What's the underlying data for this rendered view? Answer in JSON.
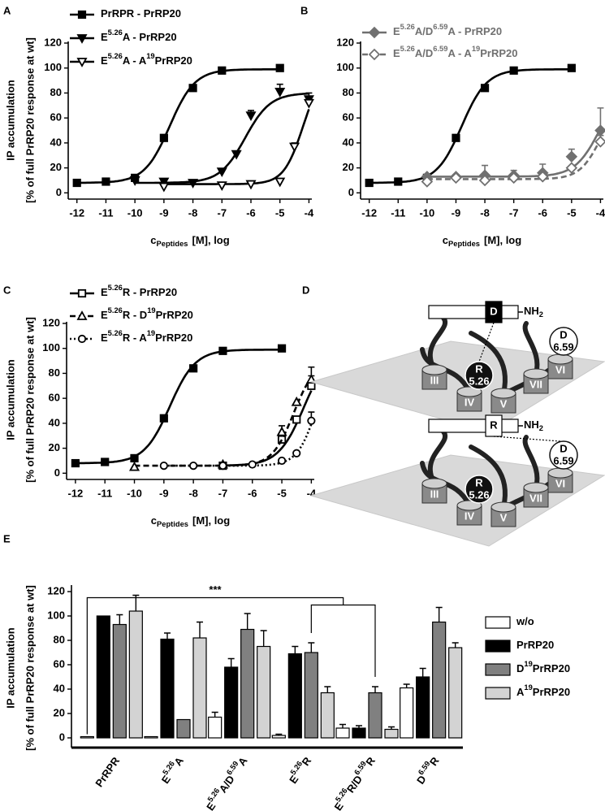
{
  "chart_data": [
    {
      "panel_label": "A",
      "type": "scatter",
      "ylabel": [
        "IP accumulation",
        "[% of full PrRP20 response at wt]"
      ],
      "xlabel": [
        {
          "text": "c"
        },
        {
          "text": "Peptides",
          "sub": true
        },
        {
          "text": "[M], log"
        }
      ],
      "xlim": [
        -12.3,
        -3.9
      ],
      "xticks": [
        -12,
        -11,
        -10,
        -9,
        -8,
        -7,
        -6,
        -5,
        -4
      ],
      "ylim": [
        -5,
        120
      ],
      "yticks": [
        0,
        20,
        40,
        60,
        80,
        100,
        120
      ],
      "series": [
        {
          "name": [
            {
              "text": "PrRPR - PrRP20"
            }
          ],
          "color": "#000000",
          "marker": "square",
          "filled": true,
          "line": "solid",
          "x": [
            -12,
            -11,
            -10,
            -9,
            -8,
            -7,
            -5
          ],
          "values": [
            8,
            9,
            12,
            44,
            84,
            98,
            100
          ],
          "errors": [
            null,
            null,
            null,
            null,
            null,
            null,
            null
          ],
          "fit": {
            "bottom": 8,
            "top": 99,
            "logec50": -8.8,
            "hill": 1
          }
        },
        {
          "name": [
            {
              "text": "E"
            },
            {
              "text": "5.26",
              "sup": true
            },
            {
              "text": "A - PrRP20"
            }
          ],
          "color": "#000000",
          "marker": "triangle-down",
          "filled": true,
          "line": "solid",
          "x": [
            -10,
            -9,
            -8,
            -7,
            -6.5,
            -6,
            -5,
            -4
          ],
          "values": [
            10,
            9,
            8,
            17,
            31,
            62,
            81,
            75
          ],
          "errors": [
            null,
            null,
            null,
            null,
            null,
            4,
            6,
            5
          ],
          "fit": {
            "bottom": 8,
            "top": 80,
            "logec50": -6.2,
            "hill": 1
          }
        },
        {
          "name": [
            {
              "text": "E"
            },
            {
              "text": "5.26",
              "sup": true
            },
            {
              "text": "A - A"
            },
            {
              "text": "19",
              "sup": true
            },
            {
              "text": "PrRP20"
            }
          ],
          "color": "#000000",
          "marker": "triangle-down",
          "filled": false,
          "line": "solid",
          "x": [
            -9,
            -7,
            -6,
            -5,
            -4.5,
            -4
          ],
          "values": [
            5,
            6,
            7,
            9,
            37,
            72
          ],
          "errors": [
            null,
            null,
            null,
            null,
            3,
            5
          ],
          "fit": {
            "bottom": 7,
            "top": 100,
            "logec50": -4.2,
            "hill": 1.3
          }
        }
      ]
    },
    {
      "panel_label": "B",
      "type": "scatter",
      "xlabel": [
        {
          "text": "c"
        },
        {
          "text": "Peptides",
          "sub": true
        },
        {
          "text": "[M], log"
        }
      ],
      "xlim": [
        -12.3,
        -3.9
      ],
      "xticks": [
        -12,
        -11,
        -10,
        -9,
        -8,
        -7,
        -6,
        -5,
        -4
      ],
      "ylim": [
        -5,
        120
      ],
      "yticks": [
        0,
        20,
        40,
        60,
        80,
        100,
        120
      ],
      "series": [
        {
          "color": "#000000",
          "marker": "square",
          "filled": true,
          "line": "solid",
          "x": [
            -12,
            -11,
            -10,
            -9,
            -8,
            -7,
            -5
          ],
          "values": [
            8,
            9,
            12,
            44,
            84,
            98,
            100
          ],
          "errors": [
            null,
            null,
            null,
            null,
            null,
            null,
            null
          ],
          "fit": {
            "bottom": 8,
            "top": 99,
            "logec50": -8.8,
            "hill": 1
          }
        },
        {
          "name": [
            {
              "text": "E"
            },
            {
              "text": "5.26",
              "sup": true
            },
            {
              "text": "A/D"
            },
            {
              "text": "6.59",
              "sup": true
            },
            {
              "text": "A - PrRP20"
            }
          ],
          "color": "#707070",
          "marker": "diamond",
          "filled": true,
          "line": "solid",
          "x": [
            -10,
            -9,
            -8,
            -7,
            -6,
            -5,
            -4
          ],
          "values": [
            13,
            13,
            14,
            14,
            16,
            29,
            50
          ],
          "errors": [
            null,
            null,
            8,
            4,
            7,
            6,
            18
          ],
          "fit": {
            "bottom": 13,
            "top": 90,
            "logec50": -4.0,
            "hill": 1
          }
        },
        {
          "name": [
            {
              "text": "E"
            },
            {
              "text": "5.26",
              "sup": true
            },
            {
              "text": "A/D"
            },
            {
              "text": "6.59",
              "sup": true
            },
            {
              "text": "A - A"
            },
            {
              "text": "19",
              "sup": true
            },
            {
              "text": "PrRP20"
            }
          ],
          "color": "#707070",
          "marker": "diamond",
          "filled": false,
          "line": "dashed",
          "x": [
            -10,
            -9,
            -8,
            -7,
            -6,
            -5,
            -4
          ],
          "values": [
            9,
            12,
            10,
            12,
            13,
            20,
            41
          ],
          "errors": [
            null,
            null,
            null,
            null,
            null,
            null,
            5
          ],
          "fit": {
            "bottom": 11,
            "top": 75,
            "logec50": -4.0,
            "hill": 1.2
          }
        }
      ]
    },
    {
      "panel_label": "C",
      "type": "scatter",
      "ylabel": [
        "IP accumulation",
        "[% of full PrRP20 response at wt]"
      ],
      "xlabel": [
        {
          "text": "c"
        },
        {
          "text": "Peptides",
          "sub": true
        },
        {
          "text": "[M], log"
        }
      ],
      "xlim": [
        -12.3,
        -3.9
      ],
      "xticks": [
        -12,
        -11,
        -10,
        -9,
        -8,
        -7,
        -6,
        -5,
        -4
      ],
      "ylim": [
        -5,
        120
      ],
      "yticks": [
        0,
        20,
        40,
        60,
        80,
        100,
        120
      ],
      "series": [
        {
          "color": "#000000",
          "marker": "square",
          "filled": true,
          "line": "solid",
          "x": [
            -12,
            -11,
            -10,
            -9,
            -8,
            -7,
            -5
          ],
          "values": [
            8,
            9,
            12,
            44,
            84,
            98,
            100
          ],
          "errors": [
            null,
            null,
            null,
            null,
            null,
            null,
            null
          ],
          "fit": {
            "bottom": 8,
            "top": 99,
            "logec50": -8.8,
            "hill": 1
          }
        },
        {
          "name": [
            {
              "text": "E"
            },
            {
              "text": "5.26",
              "sup": true
            },
            {
              "text": "R - PrRP20"
            }
          ],
          "color": "#000000",
          "marker": "square",
          "filled": false,
          "line": "solid",
          "x": [
            -7,
            -5,
            -4.5,
            -4
          ],
          "values": [
            6,
            27,
            43,
            70
          ],
          "errors": [
            null,
            null,
            null,
            8
          ],
          "fit": {
            "bottom": 6,
            "top": 100,
            "logec50": -4.25,
            "hill": 1
          }
        },
        {
          "name": [
            {
              "text": "E"
            },
            {
              "text": "5.26",
              "sup": true
            },
            {
              "text": "R - D"
            },
            {
              "text": "19",
              "sup": true
            },
            {
              "text": "PrRP20"
            }
          ],
          "color": "#000000",
          "marker": "triangle-up",
          "filled": false,
          "line": "dashed",
          "x": [
            -10,
            -7,
            -5,
            -4.5,
            -4
          ],
          "values": [
            5,
            7,
            33,
            57,
            75
          ],
          "errors": [
            null,
            null,
            5,
            null,
            10
          ],
          "fit": {
            "bottom": 6,
            "top": 90,
            "logec50": -4.6,
            "hill": 1.2
          }
        },
        {
          "name": [
            {
              "text": "E"
            },
            {
              "text": "5.26",
              "sup": true
            },
            {
              "text": "R - A"
            },
            {
              "text": "19",
              "sup": true
            },
            {
              "text": "PrRP20"
            }
          ],
          "color": "#000000",
          "marker": "circle",
          "filled": false,
          "line": "dotted",
          "x": [
            -9,
            -8,
            -7,
            -6,
            -5,
            -4.5,
            -4
          ],
          "values": [
            6,
            6,
            6,
            7,
            10,
            16,
            42
          ],
          "errors": [
            null,
            null,
            null,
            null,
            null,
            null,
            7
          ],
          "fit": {
            "bottom": 6,
            "top": 100,
            "logec50": -3.8,
            "hill": 1.3
          }
        }
      ]
    },
    {
      "panel_label": "E",
      "type": "bar",
      "ylabel": [
        "IP accumulation",
        "[% of full PrRP20 response at wt]"
      ],
      "ylim": [
        -8,
        124
      ],
      "yticks": [
        0,
        20,
        40,
        60,
        80,
        100,
        120
      ],
      "annotation": "***",
      "categories": [
        [
          {
            "text": "PrRPR"
          }
        ],
        [
          {
            "text": "E"
          },
          {
            "text": "5.26",
            "sup": true
          },
          {
            "text": "A"
          }
        ],
        [
          {
            "text": "E"
          },
          {
            "text": "5.26",
            "sup": true
          },
          {
            "text": "A/D"
          },
          {
            "text": "6.59",
            "sup": true
          },
          {
            "text": "A"
          }
        ],
        [
          {
            "text": "E"
          },
          {
            "text": "5.26",
            "sup": true
          },
          {
            "text": "R"
          }
        ],
        [
          {
            "text": "E"
          },
          {
            "text": "5.26",
            "sup": true
          },
          {
            "text": "R/D"
          },
          {
            "text": "6.59",
            "sup": true
          },
          {
            "text": "R"
          }
        ],
        [
          {
            "text": "D"
          },
          {
            "text": "6.59",
            "sup": true
          },
          {
            "text": "R"
          }
        ]
      ],
      "series": [
        {
          "name": [
            {
              "text": "w/o"
            }
          ],
          "color": "#ffffff",
          "values": [
            1,
            1,
            17,
            2,
            8,
            41
          ],
          "errors": [
            null,
            null,
            4,
            1,
            3,
            3
          ]
        },
        {
          "name": [
            {
              "text": "PrRP20"
            }
          ],
          "color": "#000000",
          "values": [
            100,
            81,
            58,
            69,
            8,
            50
          ],
          "errors": [
            null,
            5,
            7,
            6,
            2,
            7
          ]
        },
        {
          "name": [
            {
              "text": "D"
            },
            {
              "text": "19",
              "sup": true
            },
            {
              "text": "PrRP20"
            }
          ],
          "color": "#808080",
          "values": [
            93,
            15,
            89,
            70,
            37,
            95
          ],
          "errors": [
            8,
            null,
            13,
            8,
            5,
            12
          ]
        },
        {
          "name": [
            {
              "text": "A"
            },
            {
              "text": "19",
              "sup": true
            },
            {
              "text": "PrRP20"
            }
          ],
          "color": "#d3d3d3",
          "values": [
            104,
            82,
            75,
            37,
            7,
            74
          ],
          "errors": [
            13,
            13,
            13,
            5,
            2,
            4
          ]
        }
      ]
    }
  ],
  "diagram": {
    "panel_label": "D",
    "views": [
      {
        "peptide_residue": "D",
        "residue_box_color": "#000000",
        "terminus": [
          {
            "text": "NH"
          },
          {
            "text": "2",
            "sub": true
          }
        ],
        "receptor_residue": "R",
        "receptor_position": "5.26",
        "partner_residue": "D",
        "partner_position": "6.59",
        "contact": "receptor",
        "helices": [
          "III",
          "IV",
          "V",
          "VI",
          "VII"
        ]
      },
      {
        "peptide_residue": "R",
        "residue_box_color": "#ffffff",
        "terminus": [
          {
            "text": "NH"
          },
          {
            "text": "2",
            "sub": true
          }
        ],
        "receptor_residue": "R",
        "receptor_position": "5.26",
        "partner_residue": "D",
        "partner_position": "6.59",
        "contact": "partner",
        "helices": [
          "III",
          "IV",
          "V",
          "VI",
          "VII"
        ]
      }
    ]
  }
}
